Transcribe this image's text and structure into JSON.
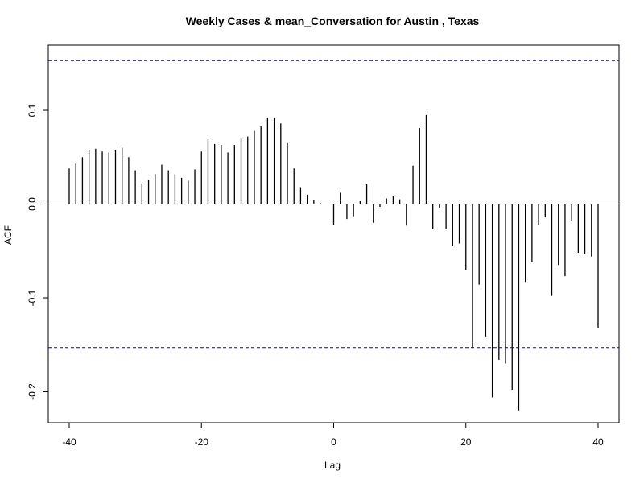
{
  "chart_data": {
    "type": "bar",
    "title": "Weekly Cases & mean_Conversation for Austin , Texas",
    "xlabel": "Lag",
    "ylabel": "ACF",
    "xlim": [
      -40,
      40
    ],
    "ylim": [
      -0.23,
      0.17
    ],
    "x_ticks": [
      {
        "value": -40,
        "label": "-40"
      },
      {
        "value": -20,
        "label": "-20"
      },
      {
        "value": 0,
        "label": "0"
      },
      {
        "value": 20,
        "label": "20"
      },
      {
        "value": 40,
        "label": "40"
      }
    ],
    "y_ticks": [
      {
        "value": -0.2,
        "label": "-0.2"
      },
      {
        "value": -0.1,
        "label": "-0.1"
      },
      {
        "value": 0.0,
        "label": "0.0"
      },
      {
        "value": 0.1,
        "label": "0.1"
      }
    ],
    "confidence_bounds": [
      0.153,
      -0.153
    ],
    "lags": [
      -40,
      -39,
      -38,
      -37,
      -36,
      -35,
      -34,
      -33,
      -32,
      -31,
      -30,
      -29,
      -28,
      -27,
      -26,
      -25,
      -24,
      -23,
      -22,
      -21,
      -20,
      -19,
      -18,
      -17,
      -16,
      -15,
      -14,
      -13,
      -12,
      -11,
      -10,
      -9,
      -8,
      -7,
      -6,
      -5,
      -4,
      -3,
      -2,
      -1,
      0,
      1,
      2,
      3,
      4,
      5,
      6,
      7,
      8,
      9,
      10,
      11,
      12,
      13,
      14,
      15,
      16,
      17,
      18,
      19,
      20,
      21,
      22,
      23,
      24,
      25,
      26,
      27,
      28,
      29,
      30,
      31,
      32,
      33,
      34,
      35,
      36,
      37,
      38,
      39,
      40
    ],
    "values": [
      0.038,
      0.043,
      0.05,
      0.058,
      0.059,
      0.056,
      0.055,
      0.058,
      0.06,
      0.05,
      0.036,
      0.022,
      0.026,
      0.032,
      0.042,
      0.036,
      0.032,
      0.028,
      0.025,
      0.037,
      0.056,
      0.069,
      0.064,
      0.063,
      0.055,
      0.063,
      0.07,
      0.072,
      0.078,
      0.083,
      0.092,
      0.092,
      0.086,
      0.065,
      0.038,
      0.018,
      0.01,
      0.004,
      0.001,
      0.0,
      -0.022,
      0.012,
      -0.016,
      -0.013,
      0.003,
      0.021,
      -0.02,
      -0.003,
      0.006,
      0.009,
      0.005,
      -0.023,
      0.041,
      0.081,
      0.095,
      -0.027,
      -0.004,
      -0.027,
      -0.045,
      -0.042,
      -0.07,
      -0.153,
      -0.086,
      -0.142,
      -0.206,
      -0.166,
      -0.17,
      -0.198,
      -0.22,
      -0.083,
      -0.062,
      -0.022,
      -0.014,
      -0.098,
      -0.065,
      -0.077,
      -0.018,
      -0.052,
      -0.053,
      -0.056,
      -0.132
    ],
    "colors": {
      "bars": "#000000",
      "confidence": "#0000cc",
      "axis": "#000000"
    },
    "grid": false,
    "legend": "none"
  }
}
